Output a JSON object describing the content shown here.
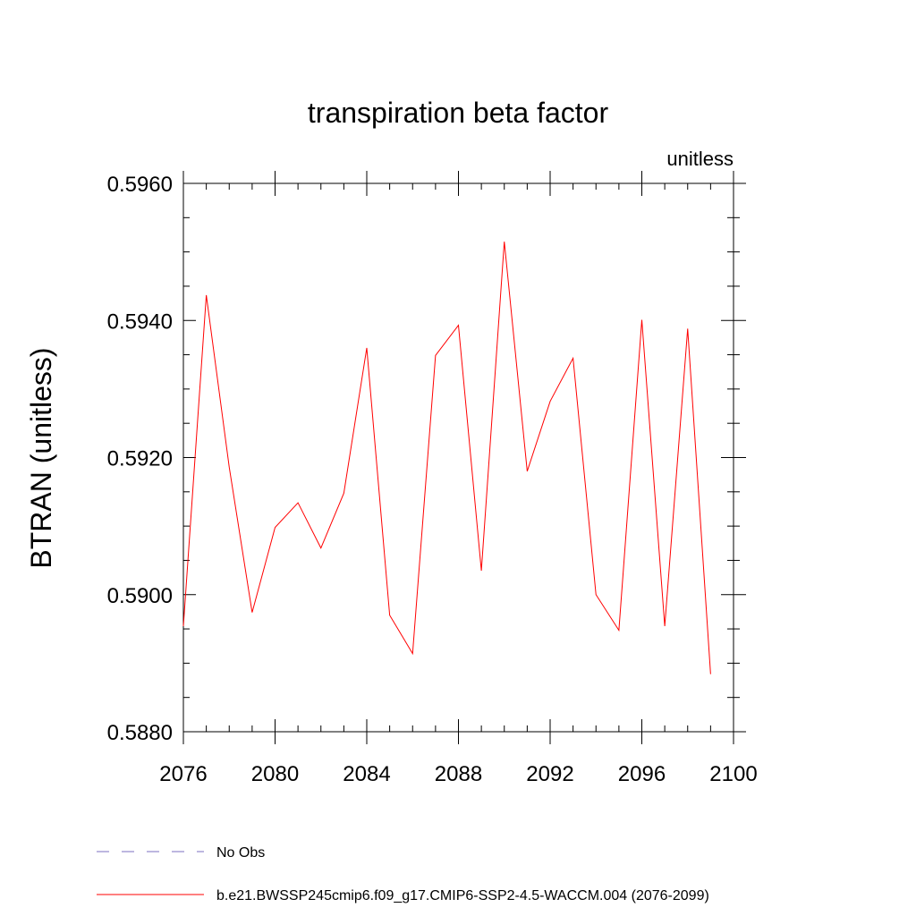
{
  "chart_data": {
    "type": "line",
    "title": "transpiration beta factor",
    "subtitle": "unitless",
    "y_label": "BTRAN  (unitless)",
    "x": [
      2076,
      2077,
      2078,
      2079,
      2080,
      2081,
      2082,
      2083,
      2084,
      2085,
      2086,
      2087,
      2088,
      2089,
      2090,
      2091,
      2092,
      2093,
      2094,
      2095,
      2096,
      2097,
      2098,
      2099
    ],
    "series": [
      {
        "name": "b.e21.BWSSP245cmip6.f09_g17.CMIP6-SSP2-4.5-WACCM.004 (2076-2099)",
        "color": "#ff0000",
        "values": [
          0.58954,
          0.59437,
          0.59186,
          0.58974,
          0.59098,
          0.59134,
          0.59068,
          0.59148,
          0.5936,
          0.5897,
          0.58914,
          0.59349,
          0.59393,
          0.59035,
          0.59515,
          0.5918,
          0.59282,
          0.59345,
          0.59,
          0.58948,
          0.59401,
          0.58954,
          0.59388,
          0.58884
        ]
      }
    ],
    "legend_extra": [
      {
        "name": "No Obs",
        "color": "#7b6fc0",
        "dashed": true
      }
    ],
    "xlim": [
      2076,
      2100
    ],
    "xticks": [
      2076,
      2080,
      2084,
      2088,
      2092,
      2096,
      2100
    ],
    "xminorticks": [
      2077,
      2078,
      2079,
      2081,
      2082,
      2083,
      2085,
      2086,
      2087,
      2089,
      2090,
      2091,
      2093,
      2094,
      2095,
      2097,
      2098,
      2099
    ],
    "ylim": [
      0.588,
      0.596
    ],
    "yticks": [
      {
        "value": 0.588,
        "label": "0.5880"
      },
      {
        "value": 0.59,
        "label": "0.5900"
      },
      {
        "value": 0.592,
        "label": "0.5920"
      },
      {
        "value": 0.594,
        "label": "0.5940"
      },
      {
        "value": 0.596,
        "label": "0.5960"
      }
    ],
    "yminorticks": [
      0.5885,
      0.589,
      0.5895,
      0.5905,
      0.591,
      0.5915,
      0.5925,
      0.593,
      0.5935,
      0.5945,
      0.595,
      0.5955
    ]
  }
}
